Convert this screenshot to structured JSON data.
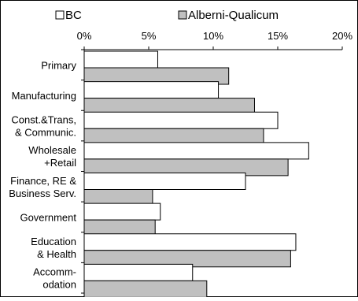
{
  "chart_data": {
    "type": "bar",
    "orientation": "horizontal",
    "categories": [
      [
        "Primary"
      ],
      [
        "Manufacturing"
      ],
      [
        "Const.&Trans,",
        "& Communic."
      ],
      [
        "Wholesale",
        "+Retail"
      ],
      [
        "Finance, RE &",
        "Business Serv."
      ],
      [
        "Government"
      ],
      [
        "Education",
        "& Health"
      ],
      [
        "Accomm-",
        "odation"
      ]
    ],
    "series": [
      {
        "name": "BC",
        "color": "#ffffff",
        "values": [
          5.7,
          10.4,
          15.0,
          17.4,
          12.5,
          5.9,
          16.4,
          8.4
        ]
      },
      {
        "name": "Alberni-Qualicum",
        "color": "#c0c0c0",
        "values": [
          11.2,
          13.2,
          13.9,
          15.8,
          5.3,
          5.5,
          16.0,
          9.5
        ]
      }
    ],
    "xlim": [
      0,
      20
    ],
    "xticks": [
      "0%",
      "5%",
      "10%",
      "15%",
      "20%"
    ],
    "xtick_values": [
      0,
      5,
      10,
      15,
      20
    ],
    "legend_position": "top",
    "grid": false
  }
}
